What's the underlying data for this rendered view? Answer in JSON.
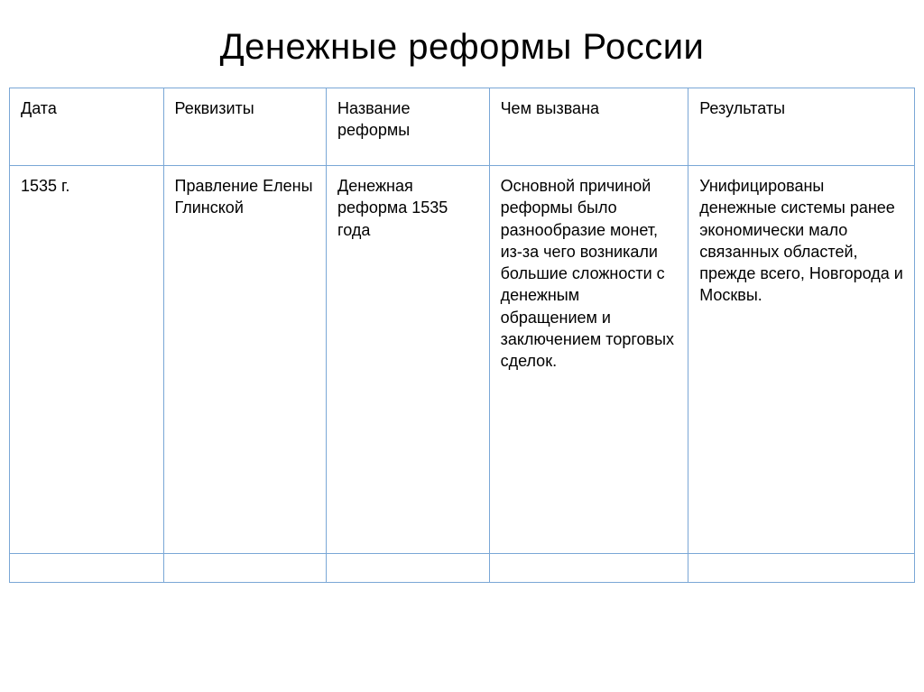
{
  "title": "Денежные реформы России",
  "table": {
    "border_color": "#7aa7d6",
    "text_color": "#000000",
    "font_size_pt": 14,
    "columns": [
      {
        "label": "Дата",
        "width_pct": 17
      },
      {
        "label": "Реквизиты",
        "width_pct": 18
      },
      {
        "label": "Название реформы",
        "width_pct": 18
      },
      {
        "label": "Чем вызвана",
        "width_pct": 22
      },
      {
        "label": "Результаты",
        "width_pct": 25
      }
    ],
    "rows": [
      {
        "date": "1535 г.",
        "details": "Правление Елены Глинской",
        "name": "Денежная реформа 1535 года",
        "cause": "Основной причиной реформы было разнообразие монет, из-за чего возникали большие сложности с денежным обращением и заключением торговых сделок.",
        "results": "Унифицированы денежные системы ранее экономически мало связанных областей, прежде всего, Новгорода и Москвы."
      }
    ]
  },
  "background_color": "#ffffff"
}
